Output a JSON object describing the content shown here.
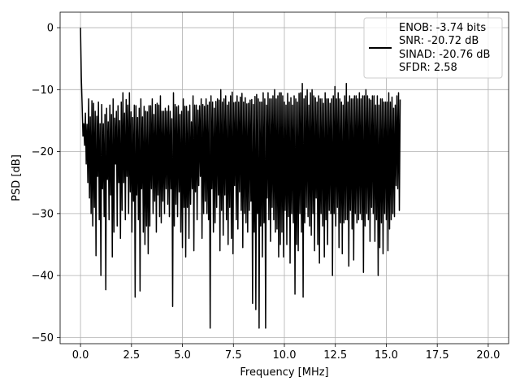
{
  "chart_data": {
    "type": "line",
    "title": "",
    "xlabel": "Frequency [MHz]",
    "ylabel": "PSD [dB]",
    "xlim": [
      -1.0,
      21.0
    ],
    "ylim": [
      -51.0,
      2.5
    ],
    "xticks": [
      0.0,
      2.5,
      5.0,
      7.5,
      10.0,
      12.5,
      15.0,
      17.5,
      20.0
    ],
    "xtick_labels": [
      "0.0",
      "2.5",
      "5.0",
      "7.5",
      "10.0",
      "12.5",
      "15.0",
      "17.5",
      "20.0"
    ],
    "yticks": [
      0,
      -10,
      -20,
      -30,
      -40,
      -50
    ],
    "ytick_labels": [
      "0",
      "−10",
      "−20",
      "−30",
      "−40",
      "−50"
    ],
    "grid": true,
    "legend_position": "top-right",
    "series": [
      {
        "color": "#000000",
        "x_start": 0.0,
        "x_step": 0.04,
        "values": [
          0.0,
          -8.0,
          -12.5,
          -17.5,
          -15.5,
          -19.0,
          -13.8,
          -22.0,
          -15.6,
          -25.0,
          -11.5,
          -27.5,
          -14.4,
          -30.0,
          -11.8,
          -32.0,
          -12.2,
          -29.0,
          -13.5,
          -36.8,
          -14.3,
          -24.0,
          -12.0,
          -31.0,
          -15.5,
          -40.0,
          -12.4,
          -26.0,
          -15.5,
          -30.5,
          -14.0,
          -42.3,
          -13.0,
          -24.5,
          -15.2,
          -31.0,
          -12.5,
          -27.0,
          -14.0,
          -37.0,
          -11.5,
          -33.0,
          -14.6,
          -22.0,
          -13.5,
          -32.0,
          -12.6,
          -25.0,
          -15.0,
          -34.0,
          -12.0,
          -29.5,
          -10.5,
          -25.0,
          -13.8,
          -31.0,
          -11.6,
          -24.0,
          -12.5,
          -30.0,
          -10.5,
          -26.5,
          -13.6,
          -33.0,
          -14.5,
          -28.0,
          -12.5,
          -43.5,
          -12.6,
          -27.0,
          -14.5,
          -31.0,
          -13.0,
          -42.5,
          -11.5,
          -26.0,
          -14.4,
          -33.0,
          -12.7,
          -35.0,
          -13.5,
          -32.0,
          -13.6,
          -36.5,
          -12.6,
          -32.0,
          -12.6,
          -26.0,
          -11.5,
          -30.0,
          -14.0,
          -28.0,
          -12.4,
          -33.0,
          -12.2,
          -27.0,
          -12.5,
          -30.5,
          -11.0,
          -31.5,
          -13.5,
          -28.0,
          -13.5,
          -30.0,
          -13.0,
          -26.0,
          -13.5,
          -28.5,
          -12.6,
          -30.5,
          -13.5,
          -26.0,
          -14.7,
          -45.0,
          -10.5,
          -32.0,
          -12.4,
          -28.5,
          -12.8,
          -30.5,
          -12.6,
          -26.5,
          -14.0,
          -33.0,
          -13.5,
          -35.5,
          -11.5,
          -29.0,
          -12.7,
          -37.0,
          -12.7,
          -29.0,
          -13.5,
          -34.0,
          -12.5,
          -28.5,
          -15.2,
          -26.0,
          -11.0,
          -36.0,
          -12.5,
          -26.5,
          -12.5,
          -31.0,
          -13.3,
          -25.5,
          -12.6,
          -24.0,
          -11.5,
          -34.0,
          -12.4,
          -30.0,
          -12.7,
          -28.0,
          -11.5,
          -30.0,
          -12.5,
          -31.0,
          -12.0,
          -48.5,
          -11.0,
          -26.0,
          -12.0,
          -33.0,
          -13.0,
          -31.5,
          -11.9,
          -29.0,
          -11.5,
          -27.0,
          -11.7,
          -36.0,
          -10.0,
          -29.5,
          -12.0,
          -33.5,
          -11.5,
          -27.0,
          -11.0,
          -31.0,
          -12.5,
          -35.0,
          -12.0,
          -29.0,
          -11.0,
          -34.0,
          -10.4,
          -36.5,
          -12.1,
          -25.5,
          -12.0,
          -31.0,
          -11.0,
          -32.5,
          -12.0,
          -26.5,
          -11.2,
          -29.5,
          -10.6,
          -35.5,
          -12.0,
          -30.0,
          -11.3,
          -31.5,
          -12.3,
          -33.0,
          -12.2,
          -29.5,
          -11.7,
          -28.0,
          -11.6,
          -44.5,
          -12.4,
          -33.0,
          -11.1,
          -45.5,
          -10.8,
          -30.0,
          -11.5,
          -48.5,
          -12.0,
          -32.0,
          -12.0,
          -37.0,
          -10.5,
          -31.5,
          -11.5,
          -48.5,
          -12.5,
          -27.5,
          -10.5,
          -31.0,
          -11.5,
          -34.5,
          -11.5,
          -29.0,
          -11.0,
          -31.0,
          -10.0,
          -33.0,
          -11.5,
          -32.5,
          -11.0,
          -37.0,
          -10.5,
          -35.0,
          -10.5,
          -33.0,
          -11.0,
          -37.0,
          -12.0,
          -29.5,
          -12.5,
          -35.0,
          -10.6,
          -30.5,
          -12.0,
          -38.0,
          -11.3,
          -30.0,
          -12.5,
          -31.5,
          -11.0,
          -43.0,
          -11.5,
          -35.0,
          -12.0,
          -36.0,
          -10.6,
          -30.0,
          -10.5,
          -33.0,
          -9.0,
          -43.5,
          -11.5,
          -31.5,
          -11.0,
          -29.0,
          -10.0,
          -30.5,
          -12.5,
          -32.0,
          -10.5,
          -33.5,
          -10.0,
          -30.0,
          -11.0,
          -36.0,
          -11.3,
          -27.5,
          -12.0,
          -35.0,
          -11.0,
          -38.0,
          -11.5,
          -30.0,
          -11.5,
          -32.0,
          -12.2,
          -37.0,
          -10.5,
          -31.0,
          -11.5,
          -35.0,
          -11.5,
          -29.5,
          -12.2,
          -30.0,
          -11.5,
          -40.0,
          -11.0,
          -30.0,
          -9.5,
          -32.0,
          -11.5,
          -29.0,
          -10.5,
          -35.5,
          -11.5,
          -31.5,
          -12.0,
          -36.5,
          -12.5,
          -31.5,
          -11.0,
          -31.0,
          -9.0,
          -31.0,
          -12.0,
          -38.5,
          -11.0,
          -29.5,
          -11.5,
          -32.5,
          -11.5,
          -37.5,
          -11.0,
          -30.0,
          -11.0,
          -31.5,
          -11.5,
          -31.0,
          -10.5,
          -30.0,
          -11.5,
          -31.0,
          -11.0,
          -39.5,
          -11.0,
          -32.0,
          -10.0,
          -30.0,
          -11.0,
          -31.0,
          -11.5,
          -34.5,
          -11.7,
          -29.0,
          -11.0,
          -30.0,
          -11.0,
          -34.5,
          -12.5,
          -31.0,
          -11.0,
          -40.0,
          -12.5,
          -35.5,
          -11.5,
          -31.5,
          -11.5,
          -36.5,
          -12.0,
          -30.0,
          -12.0,
          -31.0,
          -12.0,
          -36.0,
          -10.5,
          -32.5,
          -12.0,
          -31.0,
          -11.2,
          -30.0,
          -13.0,
          -30.5,
          -12.5,
          -25.5,
          -11.0,
          -26.0,
          -10.5,
          -29.5,
          -11.6
        ]
      }
    ],
    "legend": [
      "ENOB: -3.74 bits",
      "SNR: -20.72 dB",
      "SINAD: -20.76 dB",
      "SFDR: 2.58"
    ]
  }
}
